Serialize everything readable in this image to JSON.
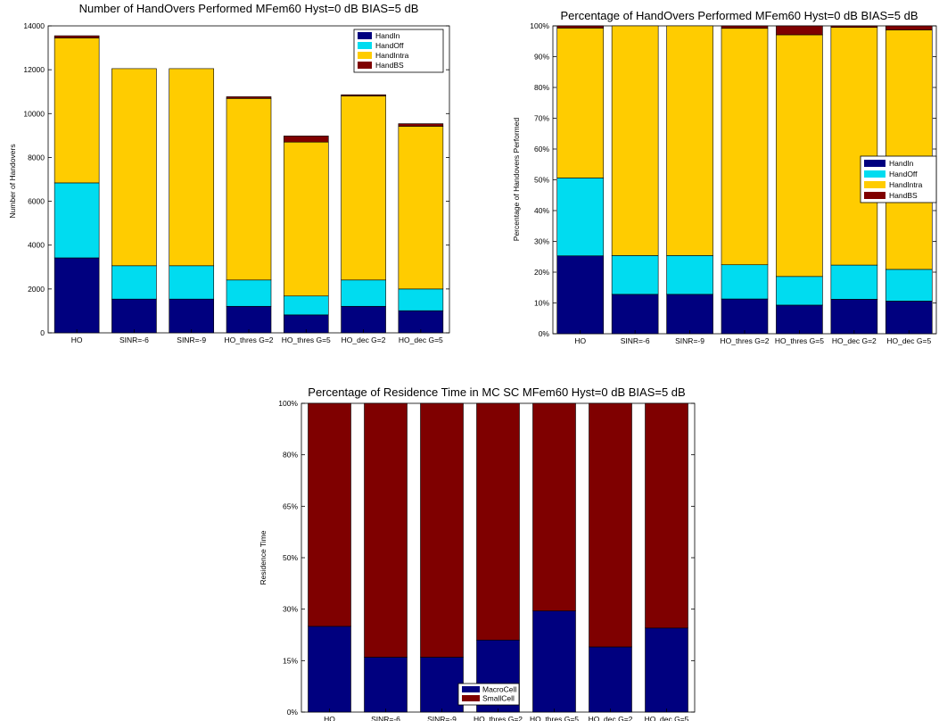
{
  "colors": {
    "HandIn": "#00007f",
    "HandOff": "#00dcf0",
    "HandIntra": "#ffcc00",
    "HandBS": "#7f0000",
    "MacroCell": "#00007f",
    "SmallCell": "#7f0000"
  },
  "chart_data": [
    {
      "type": "bar",
      "stacked": true,
      "title": "Number of HandOvers Performed MFem60 Hyst=0 dB BIAS=5 dB",
      "xlabel": "",
      "ylabel": "Number of Handovers",
      "ylim": [
        0,
        14000
      ],
      "yticks": [
        "0",
        "2000",
        "4000",
        "6000",
        "8000",
        "10000",
        "12000",
        "14000"
      ],
      "categories": [
        "HO",
        "SINR=-6",
        "SINR=-9",
        "HO_thres G=2",
        "HO_thres G=5",
        "HO_dec G=2",
        "HO_dec G=5"
      ],
      "legend_position": "top-right",
      "series": [
        {
          "name": "HandIn",
          "values": [
            3420,
            1540,
            1540,
            1210,
            820,
            1210,
            1010
          ]
        },
        {
          "name": "HandOff",
          "values": [
            3420,
            1520,
            1520,
            1200,
            860,
            1200,
            990
          ]
        },
        {
          "name": "HandIntra",
          "values": [
            6610,
            8990,
            8990,
            8280,
            7020,
            8390,
            7420
          ]
        },
        {
          "name": "HandBS",
          "values": [
            100,
            0,
            0,
            80,
            280,
            60,
            120
          ]
        }
      ]
    },
    {
      "type": "bar",
      "stacked": true,
      "title": "Percentage of HandOvers Performed MFem60 Hyst=0 dB BIAS=5 dB",
      "xlabel": "",
      "ylabel": "Percentage of Handovers Performed",
      "ylim": [
        0,
        100
      ],
      "yticks": [
        "0%",
        "10%",
        "20%",
        "30%",
        "40%",
        "50%",
        "60%",
        "70%",
        "80%",
        "90%",
        "100%"
      ],
      "categories": [
        "HO",
        "SINR=-6",
        "SINR=-9",
        "HO_thres G=2",
        "HO_thres G=5",
        "HO_dec G=2",
        "HO_dec G=5"
      ],
      "legend_position": "right",
      "series": [
        {
          "name": "HandIn",
          "values": [
            25.3,
            12.8,
            12.8,
            11.3,
            9.3,
            11.2,
            10.6
          ]
        },
        {
          "name": "HandOff",
          "values": [
            25.3,
            12.6,
            12.6,
            11.1,
            9.3,
            11.1,
            10.3
          ]
        },
        {
          "name": "HandIntra",
          "values": [
            48.7,
            74.6,
            74.6,
            76.8,
            78.5,
            77.2,
            77.8
          ]
        },
        {
          "name": "HandBS",
          "values": [
            0.7,
            0,
            0,
            0.8,
            2.9,
            0.5,
            1.3
          ]
        }
      ]
    },
    {
      "type": "bar",
      "stacked": true,
      "title": "Percentage of Residence Time in MC SC MFem60 Hyst=0 dB BIAS=5 dB",
      "xlabel": "",
      "ylabel": "Residence Time",
      "ylim": [
        0,
        100
      ],
      "yticks": [
        "0%",
        "15%",
        "30%",
        "50%",
        "65%",
        "80%",
        "100%"
      ],
      "categories": [
        "HO",
        "SINR=-6",
        "SINR=-9",
        "HO_thres G=2",
        "HO_thres G=5",
        "HO_dec G=2",
        "HO_dec G=5"
      ],
      "legend_position": "bottom-center",
      "series": [
        {
          "name": "MacroCell",
          "values": [
            25,
            16,
            16,
            21,
            29.5,
            19,
            24.5
          ]
        },
        {
          "name": "SmallCell",
          "values": [
            75,
            84,
            84,
            79,
            70.5,
            81,
            75.5
          ]
        }
      ]
    }
  ]
}
